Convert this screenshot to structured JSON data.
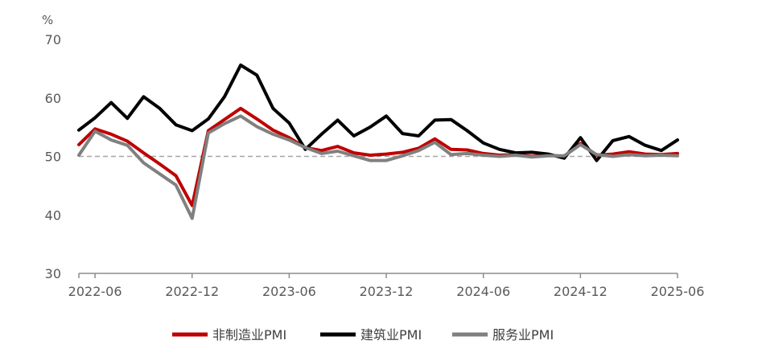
{
  "chart_data": {
    "type": "line",
    "ylabel_unit": "%",
    "ylim": [
      30,
      70
    ],
    "yticks": [
      "70",
      "60",
      "50",
      "40",
      "30"
    ],
    "xticks": [
      "2022-06",
      "2022-12",
      "2023-06",
      "2023-12",
      "2024-06",
      "2024-12",
      "2025-06"
    ],
    "reference_line": 50,
    "x": [
      "2022-05",
      "2022-06",
      "2022-07",
      "2022-08",
      "2022-09",
      "2022-10",
      "2022-11",
      "2022-12",
      "2023-01",
      "2023-02",
      "2023-03",
      "2023-04",
      "2023-05",
      "2023-06",
      "2023-07",
      "2023-08",
      "2023-09",
      "2023-10",
      "2023-11",
      "2023-12",
      "2024-01",
      "2024-02",
      "2024-03",
      "2024-04",
      "2024-05",
      "2024-06",
      "2024-07",
      "2024-08",
      "2024-09",
      "2024-10",
      "2024-11",
      "2024-12",
      "2025-01",
      "2025-02",
      "2025-03",
      "2025-04",
      "2025-05",
      "2025-06"
    ],
    "series": [
      {
        "name": "非制造业PMI",
        "color": "#c00000",
        "values": [
          52.0,
          54.7,
          53.8,
          52.6,
          50.6,
          48.7,
          46.7,
          41.6,
          54.4,
          56.3,
          58.2,
          56.4,
          54.5,
          53.2,
          51.5,
          51.0,
          51.7,
          50.6,
          50.2,
          50.4,
          50.7,
          51.4,
          53.0,
          51.2,
          51.1,
          50.5,
          50.2,
          50.3,
          50.0,
          50.2,
          50.0,
          52.2,
          50.2,
          50.4,
          50.8,
          50.4,
          50.3,
          50.5
        ]
      },
      {
        "name": "建筑业PMI",
        "color": "#000000",
        "values": [
          54.5,
          56.6,
          59.2,
          56.5,
          60.2,
          58.2,
          55.4,
          54.4,
          56.4,
          60.2,
          65.6,
          63.9,
          58.2,
          55.7,
          51.2,
          53.8,
          56.2,
          53.5,
          55.0,
          56.9,
          53.9,
          53.5,
          56.2,
          56.3,
          54.4,
          52.3,
          51.2,
          50.6,
          50.7,
          50.4,
          49.7,
          53.2,
          49.3,
          52.7,
          53.4,
          51.9,
          51.0,
          52.8
        ]
      },
      {
        "name": "服务业PMI",
        "color": "#808080",
        "values": [
          50.2,
          54.3,
          52.8,
          51.9,
          48.9,
          47.0,
          45.1,
          39.4,
          54.0,
          55.6,
          56.9,
          55.1,
          53.8,
          52.8,
          51.5,
          50.5,
          50.9,
          50.1,
          49.3,
          49.3,
          50.1,
          51.0,
          52.4,
          50.3,
          50.5,
          50.2,
          50.0,
          50.2,
          49.9,
          50.1,
          50.1,
          52.0,
          50.3,
          50.0,
          50.3,
          50.1,
          50.2,
          50.1
        ]
      }
    ]
  }
}
